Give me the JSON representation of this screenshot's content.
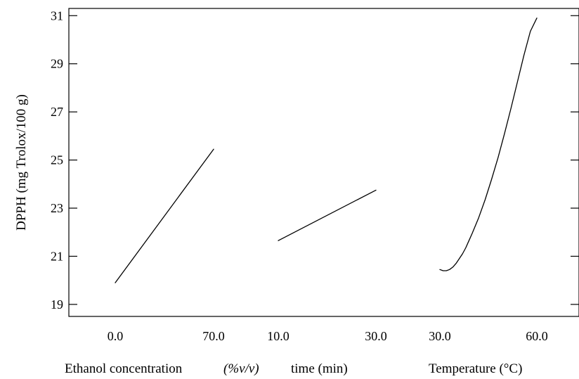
{
  "chart_data": {
    "type": "line",
    "title": "",
    "ylabel": "DPPH (mg Trolox/100 g)",
    "ylim": [
      18.5,
      31.3
    ],
    "y_ticks": [
      19,
      21,
      23,
      25,
      27,
      29,
      31
    ],
    "grid": false,
    "panels": [
      {
        "xlabel": "Ethanol concentration",
        "xlabel_unit": "(%v/v)",
        "x_ticks": [
          "0.0",
          "70.0"
        ],
        "xlim": [
          0,
          70
        ],
        "series": [
          {
            "x": [
              0,
              70
            ],
            "y": [
              19.9,
              25.45
            ]
          }
        ]
      },
      {
        "xlabel": "time (min)",
        "x_ticks": [
          "10.0",
          "30.0"
        ],
        "xlim": [
          10,
          30
        ],
        "series": [
          {
            "x": [
              10,
              30
            ],
            "y": [
              21.65,
              23.75
            ]
          }
        ]
      },
      {
        "xlabel": "Temperature (°C)",
        "x_ticks": [
          "30.0",
          "60.0"
        ],
        "xlim": [
          30,
          60
        ],
        "series": [
          {
            "x": [
              30,
              31,
              32,
              33,
              34,
              35,
              36,
              37,
              38,
              39,
              40,
              42,
              44,
              46,
              48,
              50,
              52,
              54,
              56,
              58,
              60
            ],
            "y": [
              20.45,
              20.4,
              20.4,
              20.45,
              20.55,
              20.7,
              20.9,
              21.1,
              21.35,
              21.65,
              21.95,
              22.6,
              23.35,
              24.2,
              25.1,
              26.1,
              27.15,
              28.25,
              29.35,
              30.35,
              30.9
            ]
          }
        ]
      }
    ]
  }
}
